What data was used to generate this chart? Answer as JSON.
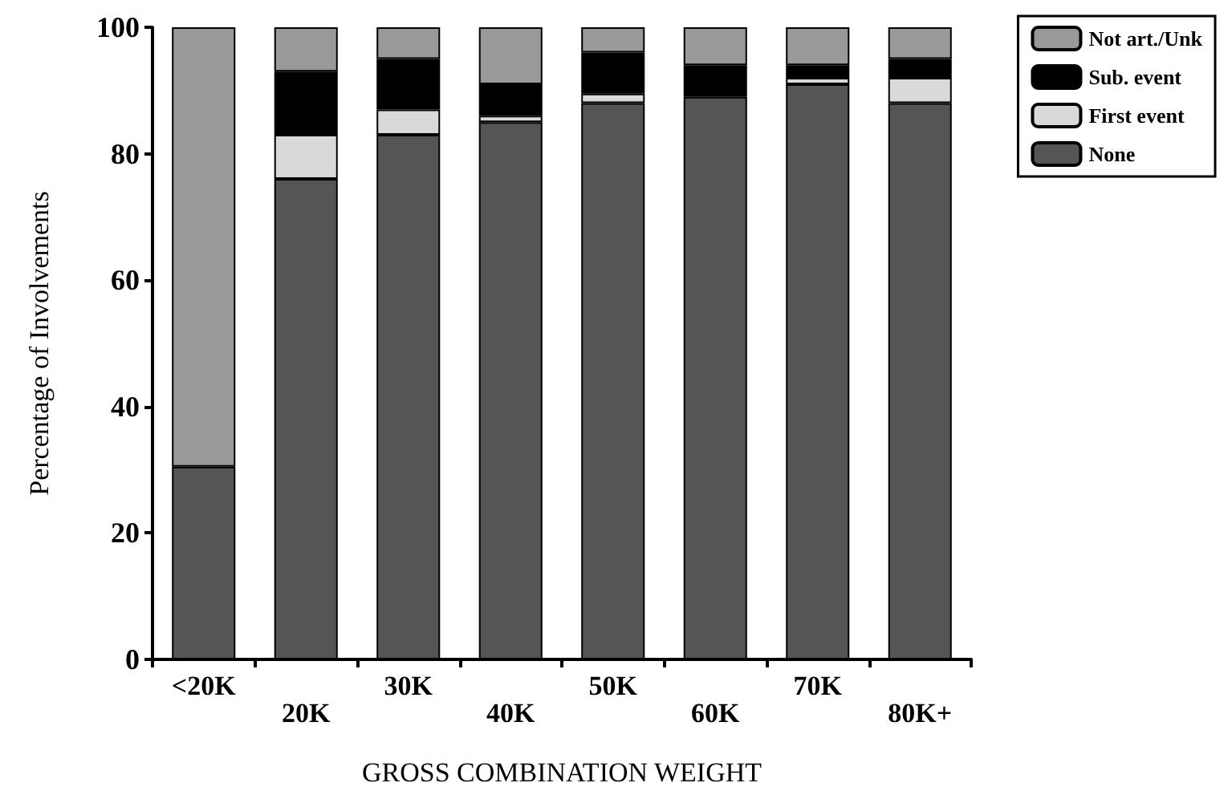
{
  "chart_data": {
    "type": "bar",
    "stacked": true,
    "ylabel": "Percentage of Involvements",
    "xlabel": "GROSS COMBINATION WEIGHT",
    "categories": [
      "<20K",
      "20K",
      "30K",
      "40K",
      "50K",
      "60K",
      "70K",
      "80K+"
    ],
    "series": [
      {
        "name": "None",
        "color": "#555555",
        "values": [
          30.5,
          76,
          83,
          85,
          88,
          89,
          91,
          88
        ]
      },
      {
        "name": "First event",
        "color": "#d9d9d9",
        "values": [
          0,
          7,
          4,
          1,
          1.5,
          0,
          1,
          4
        ]
      },
      {
        "name": "Sub. event",
        "color": "#000000",
        "values": [
          0,
          10,
          8,
          5,
          6.5,
          5,
          2,
          3
        ]
      },
      {
        "name": "Not art./Unk",
        "color": "#999999",
        "values": [
          69.5,
          7,
          5,
          9,
          4,
          6,
          6,
          5
        ]
      }
    ],
    "ylim": [
      0,
      100
    ],
    "yticks": [
      0,
      20,
      40,
      60,
      80,
      100
    ],
    "grid": false,
    "legend": "top right"
  }
}
